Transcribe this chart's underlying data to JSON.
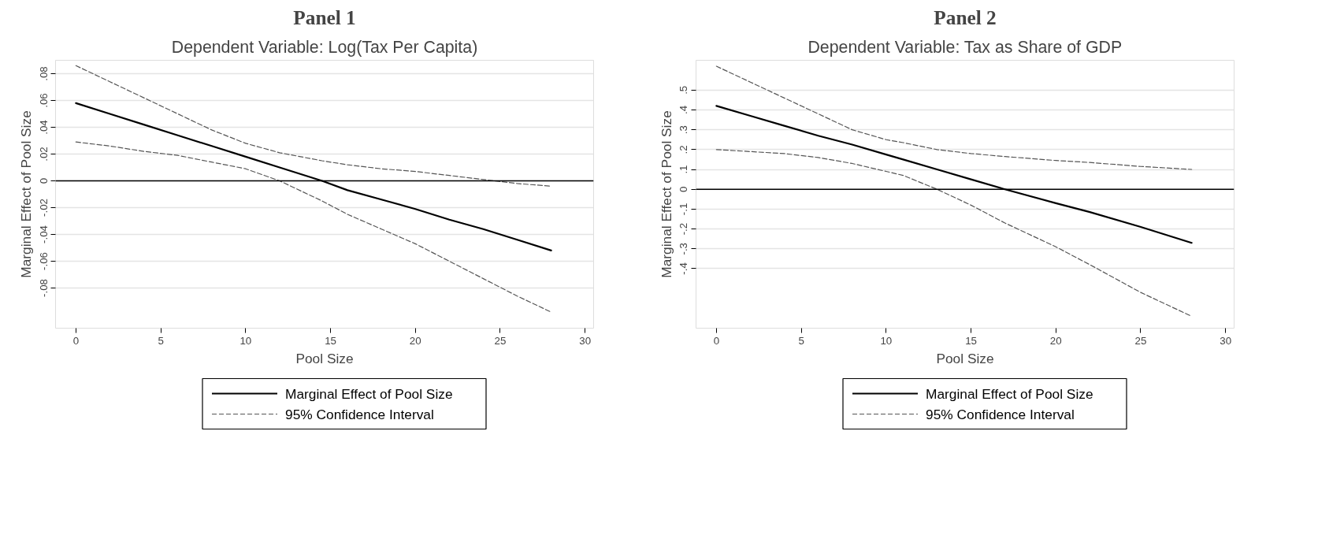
{
  "chart_data": [
    {
      "type": "line",
      "title": "Panel 1",
      "subtitle": "Dependent Variable: Log(Tax Per Capita)",
      "xlabel": "Pool Size",
      "ylabel": "Marginal Effect of Pool Size",
      "x": [
        0,
        2,
        4,
        6,
        8,
        10,
        12,
        14.5,
        16,
        18,
        20,
        22,
        24,
        26,
        28
      ],
      "series": [
        {
          "name": "Marginal Effect of Pool Size",
          "color": "#000000",
          "line_style": "solid",
          "values": [
            0.058,
            0.05,
            0.042,
            0.034,
            0.026,
            0.018,
            0.01,
            0.0,
            -0.007,
            -0.014,
            -0.021,
            -0.029,
            -0.036,
            -0.044,
            -0.052
          ]
        },
        {
          "name": "95% Confidence Interval",
          "color": "#555555",
          "line_style": "dashed",
          "values": [
            0.086,
            0.074,
            0.062,
            0.05,
            0.038,
            0.028,
            0.021,
            0.015,
            0.012,
            0.009,
            0.007,
            0.004,
            0.001,
            -0.002,
            -0.004
          ]
        },
        {
          "color": "#555555",
          "line_style": "dashed",
          "values": [
            0.029,
            0.026,
            0.022,
            0.019,
            0.014,
            0.009,
            0.0,
            -0.015,
            -0.025,
            -0.036,
            -0.047,
            -0.06,
            -0.073,
            -0.086,
            -0.098
          ]
        }
      ],
      "xlim": [
        -1.2,
        30.5
      ],
      "xticks": [
        0,
        5,
        10,
        15,
        20,
        25,
        30
      ],
      "ylim": [
        -0.11,
        0.09
      ],
      "yticks": [
        {
          "value": -0.08,
          "label": "-.08"
        },
        {
          "value": -0.06,
          "label": "-.06"
        },
        {
          "value": -0.04,
          "label": "-.04"
        },
        {
          "value": -0.02,
          "label": "-.02"
        },
        0,
        {
          "value": 0.02,
          "label": ".02"
        },
        {
          "value": 0.04,
          "label": ".04"
        },
        {
          "value": 0.06,
          "label": ".06"
        },
        {
          "value": 0.08,
          "label": ".08"
        }
      ],
      "ref_lines": [
        {
          "axis": "y",
          "value": 0,
          "color": "#000000"
        }
      ],
      "grid": "y",
      "legend": "bottom"
    },
    {
      "type": "line",
      "title": "Panel 2",
      "subtitle": "Dependent Variable: Tax as Share of GDP",
      "xlabel": "Pool Size",
      "ylabel": "Marginal Effect of Pool Size",
      "x": [
        0,
        2,
        4,
        6,
        8,
        10,
        11,
        13,
        15,
        17,
        20,
        22,
        25,
        28
      ],
      "series": [
        {
          "name": "Marginal Effect of Pool Size",
          "color": "#000000",
          "line_style": "solid",
          "values": [
            0.42,
            0.37,
            0.32,
            0.27,
            0.225,
            0.175,
            0.15,
            0.1,
            0.05,
            0.0,
            -0.07,
            -0.115,
            -0.19,
            -0.27
          ]
        },
        {
          "name": "95% Confidence Interval",
          "color": "#555555",
          "line_style": "dashed",
          "values": [
            0.62,
            0.54,
            0.46,
            0.38,
            0.3,
            0.25,
            0.235,
            0.2,
            0.18,
            0.165,
            0.145,
            0.135,
            0.115,
            0.1
          ]
        },
        {
          "color": "#555555",
          "line_style": "dashed",
          "values": [
            0.2,
            0.19,
            0.18,
            0.16,
            0.13,
            0.09,
            0.07,
            0.0,
            -0.08,
            -0.17,
            -0.29,
            -0.38,
            -0.52,
            -0.64
          ]
        }
      ],
      "xlim": [
        -1.2,
        30.5
      ],
      "xticks": [
        0,
        5,
        10,
        15,
        20,
        25,
        30
      ],
      "ylim": [
        -0.7,
        0.65
      ],
      "yticks": [
        {
          "value": -0.4,
          "label": "-.4"
        },
        {
          "value": -0.3,
          "label": "-.3"
        },
        {
          "value": -0.2,
          "label": "-.2"
        },
        {
          "value": -0.1,
          "label": "-.1"
        },
        0,
        {
          "value": 0.1,
          "label": ".1"
        },
        {
          "value": 0.2,
          "label": ".2"
        },
        {
          "value": 0.3,
          "label": ".3"
        },
        {
          "value": 0.4,
          "label": ".4"
        },
        {
          "value": 0.5,
          "label": ".5"
        }
      ],
      "ref_lines": [
        {
          "axis": "y",
          "value": 0,
          "color": "#000000"
        }
      ],
      "grid": "y",
      "legend": "bottom"
    }
  ]
}
